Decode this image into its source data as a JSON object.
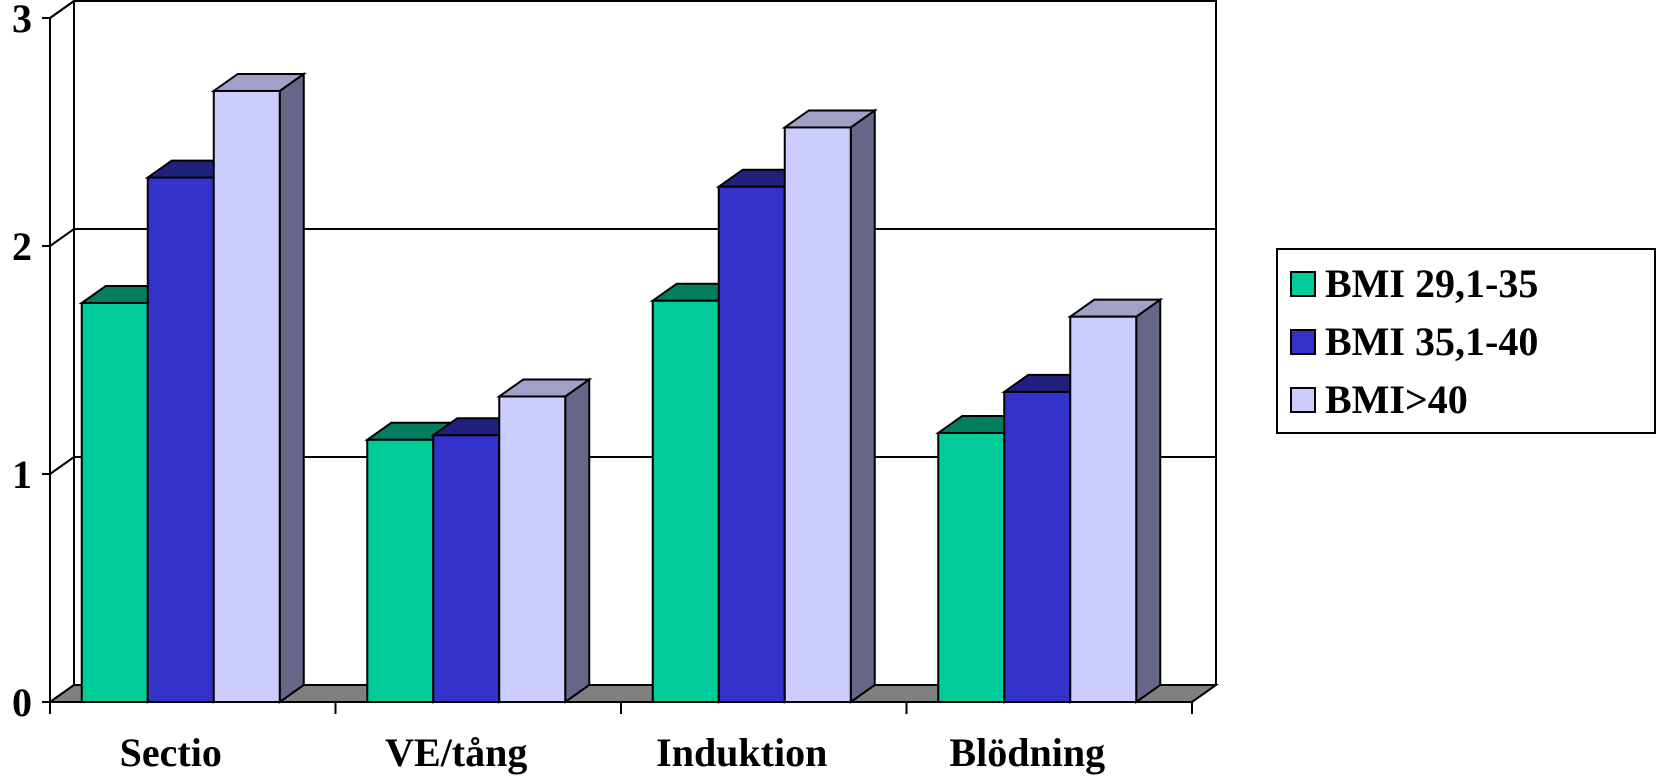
{
  "chart_data": {
    "type": "bar",
    "categories": [
      "Sectio",
      "VE/tång",
      "Induktion",
      "Blödning"
    ],
    "series": [
      {
        "name": "BMI 29,1-35",
        "values": [
          1.75,
          1.15,
          1.76,
          1.18
        ],
        "color": "#00CC99"
      },
      {
        "name": "BMI 35,1-40",
        "values": [
          2.3,
          1.17,
          2.26,
          1.36
        ],
        "color": "#3333CC"
      },
      {
        "name": "BMI>40",
        "values": [
          2.68,
          1.34,
          2.52,
          1.69
        ],
        "color": "#CCCCFF"
      }
    ],
    "ylim": [
      0,
      3
    ],
    "yticks": [
      "0",
      "1",
      "2",
      "3"
    ],
    "grid": true,
    "legend": "right",
    "title": "",
    "xlabel": "",
    "ylabel": ""
  }
}
